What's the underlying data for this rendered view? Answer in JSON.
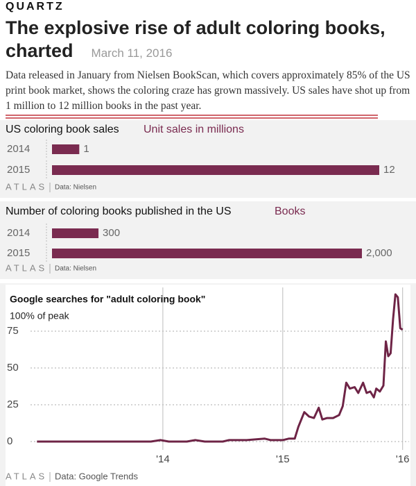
{
  "header": {
    "brand": "QUARTZ",
    "headline": "The explosive rise of adult coloring books, charted",
    "date": "March 11, 2016",
    "body": "Data released in January from Nielsen BookScan, which covers approximately 85% of the US print book market, shows the coloring craze has grown massively. US sales have shot up from 1 million to 12 million books in the past year."
  },
  "chart_data": [
    {
      "type": "bar",
      "title": "US coloring book sales",
      "subtitle": "Unit sales in millions",
      "categories": [
        "2014",
        "2015"
      ],
      "values": [
        1,
        12
      ],
      "color": "#7a2b50",
      "brand": "ATLAS",
      "source": "Data: Nielsen"
    },
    {
      "type": "bar",
      "title": "Number of coloring books published in the US",
      "subtitle": "Books",
      "categories": [
        "2014",
        "2015"
      ],
      "values": [
        300,
        2000
      ],
      "value_labels": [
        "300",
        "2,000"
      ],
      "color": "#7a2b50",
      "brand": "ATLAS",
      "source": "Data: Nielsen"
    },
    {
      "type": "line",
      "title": "Google searches for \"adult coloring book\"",
      "subtitle": "100% of peak",
      "color": "#6e2446",
      "brand": "ATLAS",
      "source": "Data: Google Trends",
      "grid": true,
      "x": [
        2012.95,
        2013.1,
        2013.3,
        2013.5,
        2013.7,
        2013.9,
        2013.98,
        2014.05,
        2014.2,
        2014.27,
        2014.35,
        2014.5,
        2014.55,
        2014.7,
        2014.85,
        2014.9,
        2015.0,
        2015.05,
        2015.1,
        2015.13,
        2015.18,
        2015.22,
        2015.26,
        2015.3,
        2015.33,
        2015.37,
        2015.42,
        2015.47,
        2015.5,
        2015.53,
        2015.56,
        2015.6,
        2015.63,
        2015.67,
        2015.7,
        2015.73,
        2015.76,
        2015.78,
        2015.81,
        2015.84,
        2015.86,
        2015.88,
        2015.9,
        2015.92,
        2015.94,
        2015.96,
        2015.98,
        2016.0
      ],
      "values": [
        0,
        0,
        0,
        0,
        0,
        0,
        1,
        0,
        0,
        1,
        0,
        0,
        1,
        1,
        2,
        1,
        1,
        2,
        2,
        10,
        20,
        17,
        16,
        23,
        15,
        16,
        16,
        18,
        24,
        40,
        36,
        37,
        33,
        40,
        33,
        34,
        30,
        36,
        34,
        38,
        68,
        58,
        60,
        83,
        100,
        98,
        77,
        76
      ],
      "xlim": [
        2012.9,
        2016.1
      ],
      "xticks": [
        {
          "value": 2014,
          "label": "'14"
        },
        {
          "value": 2015,
          "label": "'15"
        },
        {
          "value": 2016,
          "label": "'16"
        }
      ],
      "ylim": [
        0,
        100
      ],
      "yticks": [
        0,
        25,
        50,
        75
      ]
    }
  ]
}
